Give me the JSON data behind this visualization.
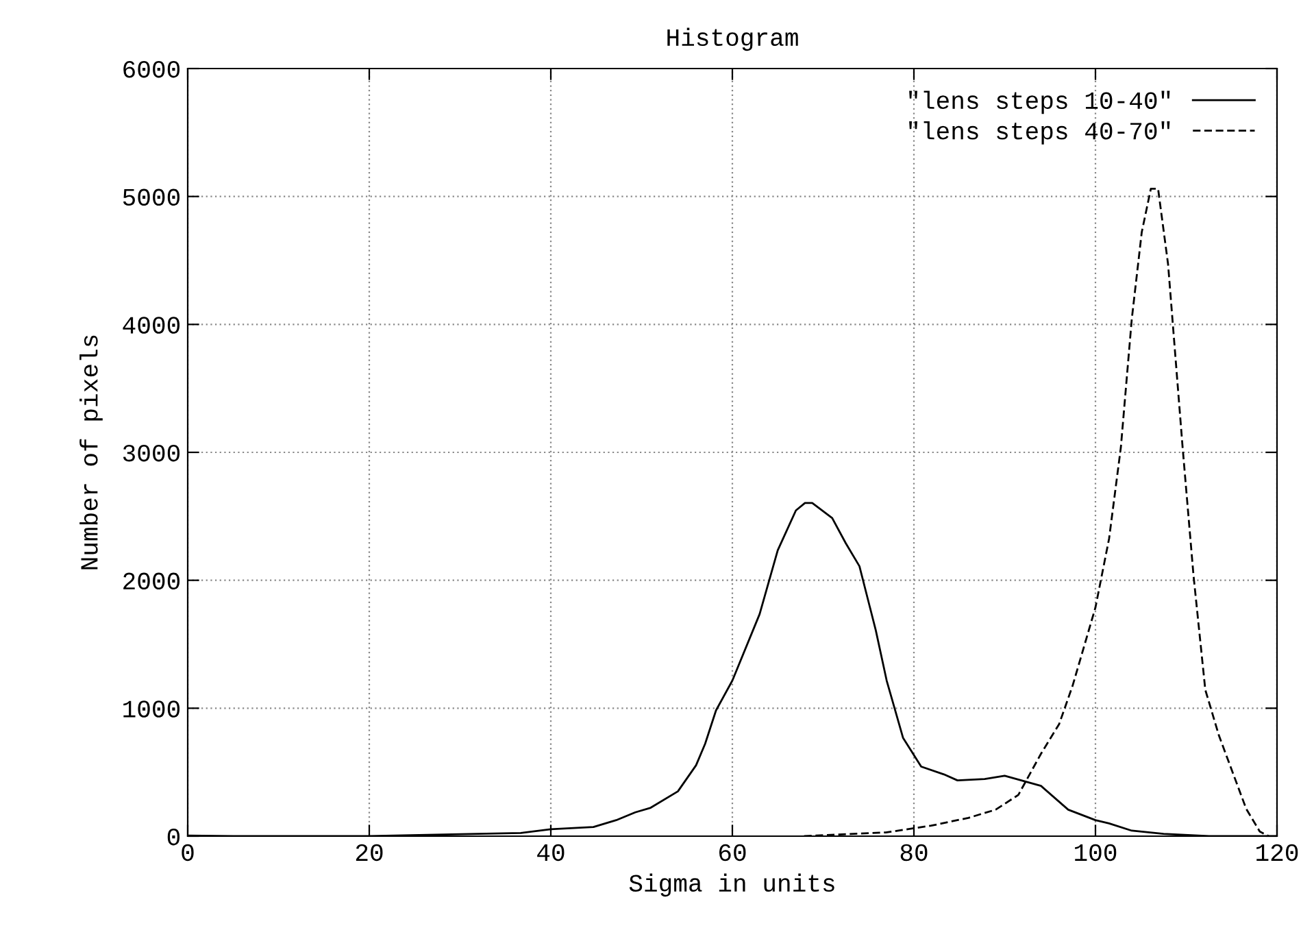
{
  "chart_data": {
    "type": "line",
    "title": "Histogram",
    "xlabel": "Sigma in units",
    "ylabel": "Number of pixels",
    "xlim": [
      0,
      120
    ],
    "xticks": [
      0,
      20,
      40,
      60,
      80,
      100,
      120
    ],
    "ylim": [
      0,
      6000
    ],
    "yticks": [
      0,
      1000,
      2000,
      3000,
      4000,
      5000,
      6000
    ],
    "grid": true,
    "legend": "top right",
    "series": [
      {
        "name": "\"lens steps 10-40\"",
        "color": "#000000",
        "line_style": "solid",
        "x": [
          0,
          5,
          20,
          30,
          36.7,
          40,
          44.7,
          47.2,
          49.3,
          51,
          54,
          56,
          57,
          58.2,
          60,
          63,
          65,
          67,
          68,
          68.8,
          71,
          72.5,
          74,
          75.8,
          77,
          78.8,
          80.8,
          83.3,
          84.8,
          87.8,
          90,
          94,
          97,
          100,
          101.5,
          104,
          107.5,
          112.5,
          120
        ],
        "values": [
          5,
          0,
          0,
          15,
          25,
          54,
          72,
          125,
          186,
          222,
          350,
          554,
          722,
          983,
          1216,
          1735,
          2235,
          2546,
          2604,
          2604,
          2486,
          2289,
          2110,
          1609,
          1216,
          769,
          544,
          483,
          436,
          447,
          472,
          393,
          207,
          125,
          100,
          43,
          18,
          0,
          0
        ]
      },
      {
        "name": "\"lens steps 40-70\"",
        "color": "#000000",
        "line_style": "dashed",
        "x": [
          67.9,
          76.9,
          81.9,
          86,
          89,
          91.5,
          94,
          96,
          97.5,
          100,
          101.5,
          102.8,
          104,
          105.1,
          106.1,
          106.9,
          108,
          109.6,
          110.8,
          112.1,
          113.6,
          115.1,
          116.6,
          118.1,
          119.1
        ],
        "values": [
          0,
          29,
          82,
          143,
          207,
          322,
          644,
          876,
          1180,
          1788,
          2325,
          3040,
          4041,
          4721,
          5060,
          5060,
          4470,
          3040,
          2039,
          1144,
          787,
          501,
          215,
          36,
          0
        ]
      }
    ]
  }
}
